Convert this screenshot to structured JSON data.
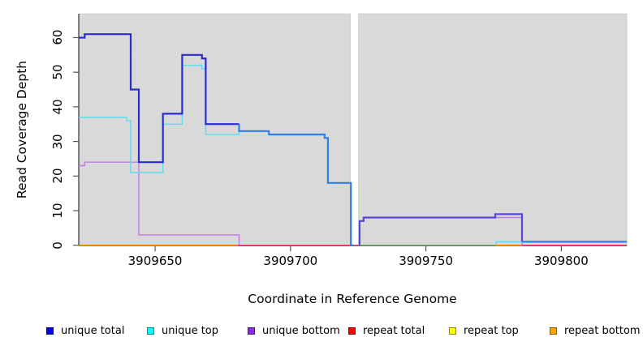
{
  "figure": {
    "xlabel": "Coordinate in Reference Genome",
    "ylabel": "Read Coverage Depth"
  },
  "chart_data": {
    "type": "line",
    "subtype": "step-coverage-plot",
    "title": "",
    "xlabel": "Coordinate in Reference Genome",
    "ylabel": "Read Coverage Depth",
    "x_ticks": [
      3909650,
      3909700,
      3909750,
      3909800
    ],
    "y_ticks": [
      0,
      10,
      20,
      30,
      40,
      50,
      60
    ],
    "x_range": [
      3909621.8,
      3909824.2
    ],
    "y_range": [
      0,
      66.9
    ],
    "grid": "off",
    "legend_position": "bottom",
    "panel_color": "#d9d9d9",
    "background_panels": [
      {
        "x1": 3909621.8,
        "x2": 3909722.1
      },
      {
        "x1": 3909725.1,
        "x2": 3909824.2
      }
    ],
    "legend": [
      {
        "label": "unique total",
        "color": "#0000ee"
      },
      {
        "label": "unique top",
        "color": "#00ffff"
      },
      {
        "label": "unique bottom",
        "color": "#8a2be2"
      },
      {
        "label": "repeat total",
        "color": "#ff0000"
      },
      {
        "label": "repeat top",
        "color": "#ffff00"
      },
      {
        "label": "repeat bottom",
        "color": "#ffa500"
      }
    ],
    "series": [
      {
        "name": "repeat total",
        "stroke_width": 1.4,
        "paths": [
          {
            "color": "#e8486e",
            "points": [
              [
                3909621.8,
                0
              ],
              [
                3909824.2,
                0
              ]
            ]
          }
        ]
      },
      {
        "name": "repeat top",
        "stroke_width": 1.4,
        "paths": [
          {
            "color": "#5cb96b",
            "points": [
              [
                3909725.5,
                0
              ],
              [
                3909776,
                0
              ]
            ]
          }
        ]
      },
      {
        "name": "repeat bottom",
        "stroke_width": 1.6,
        "paths": [
          {
            "color": "#ff9714",
            "points": [
              [
                3909621.8,
                0
              ],
              [
                3909680.5,
                0
              ]
            ]
          },
          {
            "color": "#ff9714",
            "points": [
              [
                3909776,
                0
              ],
              [
                3909785.5,
                0
              ]
            ]
          }
        ]
      },
      {
        "name": "unique bottom",
        "stroke_width": 1.4,
        "paths": [
          {
            "color": "#bb7ce5",
            "points": [
              [
                3909621.8,
                23
              ],
              [
                3909624,
                23
              ],
              [
                3909624,
                24
              ],
              [
                3909644,
                24
              ],
              [
                3909644,
                3
              ],
              [
                3909681,
                3
              ],
              [
                3909681,
                0
              ]
            ]
          },
          {
            "color": "#bb7ce5",
            "points": [
              [
                3909725.5,
                0
              ],
              [
                3909725.5,
                7
              ],
              [
                3909727,
                7
              ],
              [
                3909727,
                8
              ],
              [
                3909785.5,
                8
              ],
              [
                3909785.5,
                0
              ]
            ]
          }
        ]
      },
      {
        "name": "unique top",
        "stroke_width": 1.5,
        "paths": [
          {
            "color": "#5fdde9",
            "points": [
              [
                3909621.8,
                37
              ],
              [
                3909639.5,
                37
              ],
              [
                3909639.5,
                36
              ],
              [
                3909641,
                36
              ],
              [
                3909641,
                21
              ],
              [
                3909652.9,
                21
              ],
              [
                3909652.9,
                35
              ],
              [
                3909660,
                35
              ],
              [
                3909660,
                52
              ],
              [
                3909667.3,
                52
              ],
              [
                3909667.3,
                51
              ],
              [
                3909668.7,
                51
              ],
              [
                3909668.7,
                32
              ],
              [
                3909681,
                32
              ],
              [
                3909681,
                33
              ],
              [
                3909692,
                33
              ],
              [
                3909692,
                32
              ],
              [
                3909712.6,
                32
              ],
              [
                3909712.6,
                31
              ],
              [
                3909713.8,
                31
              ],
              [
                3909713.8,
                18
              ],
              [
                3909722.3,
                18
              ],
              [
                3909722.3,
                0
              ],
              [
                3909723.2,
                0
              ]
            ]
          },
          {
            "color": "#5fdde9",
            "points": [
              [
                3909776,
                0
              ],
              [
                3909776,
                1
              ],
              [
                3909824.2,
                1
              ]
            ]
          }
        ]
      },
      {
        "name": "unique total",
        "stroke_width": 2.2,
        "paths": [
          {
            "color": "#2b2bd0",
            "points": [
              [
                3909621.8,
                60
              ],
              [
                3909624,
                60
              ],
              [
                3909624,
                61
              ],
              [
                3909641,
                61
              ],
              [
                3909641,
                45
              ],
              [
                3909644,
                45
              ],
              [
                3909644,
                24
              ],
              [
                3909652.9,
                24
              ],
              [
                3909652.9,
                38
              ],
              [
                3909660,
                38
              ],
              [
                3909660,
                55
              ],
              [
                3909667.3,
                55
              ],
              [
                3909667.3,
                54
              ],
              [
                3909668.7,
                54
              ],
              [
                3909668.7,
                35
              ],
              [
                3909681,
                35
              ]
            ]
          },
          {
            "color": "#2e7fe8",
            "points": [
              [
                3909681,
                35
              ],
              [
                3909681,
                33
              ],
              [
                3909692,
                33
              ],
              [
                3909692,
                32
              ],
              [
                3909712.6,
                32
              ],
              [
                3909712.6,
                31
              ],
              [
                3909713.8,
                31
              ],
              [
                3909713.8,
                18
              ],
              [
                3909722.3,
                18
              ],
              [
                3909722.3,
                0
              ],
              [
                3909723.2,
                0
              ]
            ]
          },
          {
            "color": "#5b44d8",
            "points": [
              [
                3909725.5,
                0
              ],
              [
                3909725.5,
                7
              ],
              [
                3909727,
                7
              ],
              [
                3909727,
                8
              ],
              [
                3909775.6,
                8
              ],
              [
                3909775.6,
                9
              ],
              [
                3909785.5,
                9
              ],
              [
                3909785.5,
                1
              ]
            ]
          },
          {
            "color": "#2e7fe8",
            "points": [
              [
                3909785.5,
                1
              ],
              [
                3909824.2,
                1
              ]
            ]
          }
        ]
      }
    ]
  }
}
